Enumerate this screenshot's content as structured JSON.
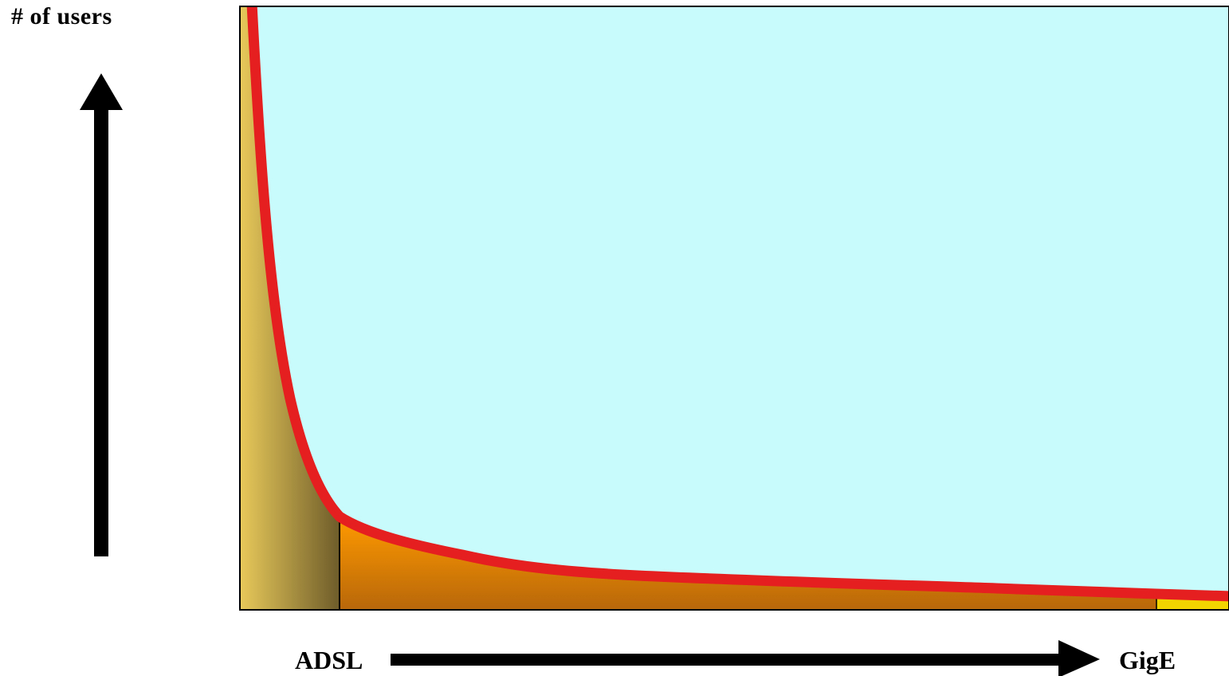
{
  "labels": {
    "y_axis": "# of users",
    "x_axis_left": "ADSL",
    "x_axis_right": "GigE"
  },
  "colors": {
    "background_region": "#c8fcfc",
    "curve": "#e51f1f",
    "left_segment": "#d6b84a",
    "middle_segment": "#f09010",
    "right_segment": "#f2d400",
    "arrows": "#000000",
    "frame": "#000000"
  }
}
